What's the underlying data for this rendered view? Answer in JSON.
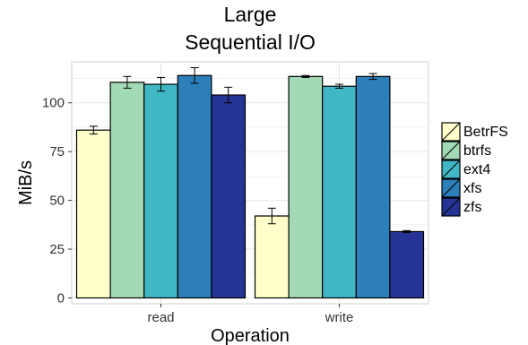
{
  "chart_data": {
    "type": "bar",
    "title_lines": [
      "Large",
      "Sequential I/O"
    ],
    "xlabel": "Operation",
    "ylabel": "MiB/s",
    "categories": [
      "read",
      "write"
    ],
    "series": [
      {
        "name": "BetrFS",
        "color": "#ffffcc",
        "values": [
          86,
          42
        ],
        "errors": [
          2,
          4
        ]
      },
      {
        "name": "btrfs",
        "color": "#a1dab4",
        "values": [
          110.5,
          113.5
        ],
        "errors": [
          3,
          0.5
        ]
      },
      {
        "name": "ext4",
        "color": "#41b6c4",
        "values": [
          109.5,
          108.5
        ],
        "errors": [
          3.5,
          1
        ]
      },
      {
        "name": "xfs",
        "color": "#2c7fb8",
        "values": [
          114,
          113.5
        ],
        "errors": [
          4,
          1.5
        ]
      },
      {
        "name": "zfs",
        "color": "#253494",
        "values": [
          104,
          34
        ],
        "errors": [
          4,
          0.5
        ]
      }
    ],
    "yticks": [
      0,
      25,
      50,
      75,
      100
    ],
    "ylim": [
      -3,
      121
    ],
    "grid": true,
    "legend_position": "right"
  }
}
